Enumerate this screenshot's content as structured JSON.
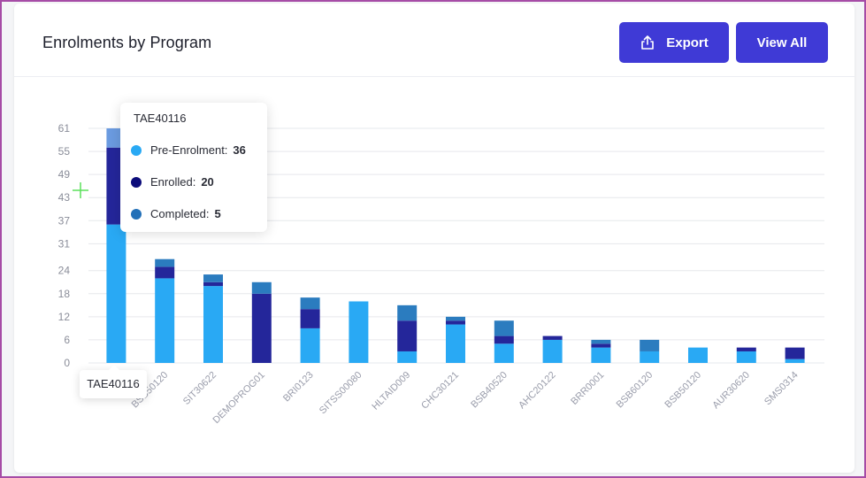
{
  "card": {
    "title": "Enrolments by Program",
    "export_label": "Export",
    "view_all_label": "View All",
    "export_icon": "export-icon"
  },
  "colors": {
    "accent": "#3f3ad6",
    "pre_enrolment": "#29a9f4",
    "enrolled": "#24269a",
    "completed": "#2b7cbf",
    "hover_top": "#6b9be0"
  },
  "chart_data": {
    "type": "bar",
    "stacked": true,
    "title": "",
    "xlabel": "",
    "ylabel": "",
    "ylim": [
      0,
      61
    ],
    "yticks": [
      0,
      6,
      12,
      18,
      24,
      31,
      37,
      43,
      49,
      55,
      61
    ],
    "grid": true,
    "categories": [
      "TAE40116",
      "BSB50120",
      "SIT30622",
      "DEMOPROG01",
      "BRI0123",
      "SITSS00080",
      "HLTAID009",
      "CHC30121",
      "BSB40520",
      "AHC20122",
      "BRR0001",
      "BSB60120",
      "BSB50120",
      "AUR30620",
      "SMS0314"
    ],
    "series": [
      {
        "name": "Pre-Enrolment",
        "values": [
          36,
          22,
          20,
          0,
          9,
          16,
          3,
          10,
          5,
          6,
          4,
          3,
          4,
          3,
          1
        ]
      },
      {
        "name": "Enrolled",
        "values": [
          20,
          3,
          1,
          18,
          5,
          0,
          8,
          1,
          2,
          1,
          1,
          0,
          0,
          1,
          3
        ]
      },
      {
        "name": "Completed",
        "values": [
          5,
          2,
          2,
          3,
          3,
          0,
          4,
          1,
          4,
          0,
          1,
          3,
          0,
          0,
          0
        ]
      }
    ],
    "tooltip": {
      "category": "TAE40116",
      "rows": [
        {
          "label": "Pre-Enrolment:",
          "value": "36"
        },
        {
          "label": "Enrolled:",
          "value": "20"
        },
        {
          "label": "Completed:",
          "value": "5"
        }
      ]
    },
    "axis_tooltip": "TAE40116"
  }
}
